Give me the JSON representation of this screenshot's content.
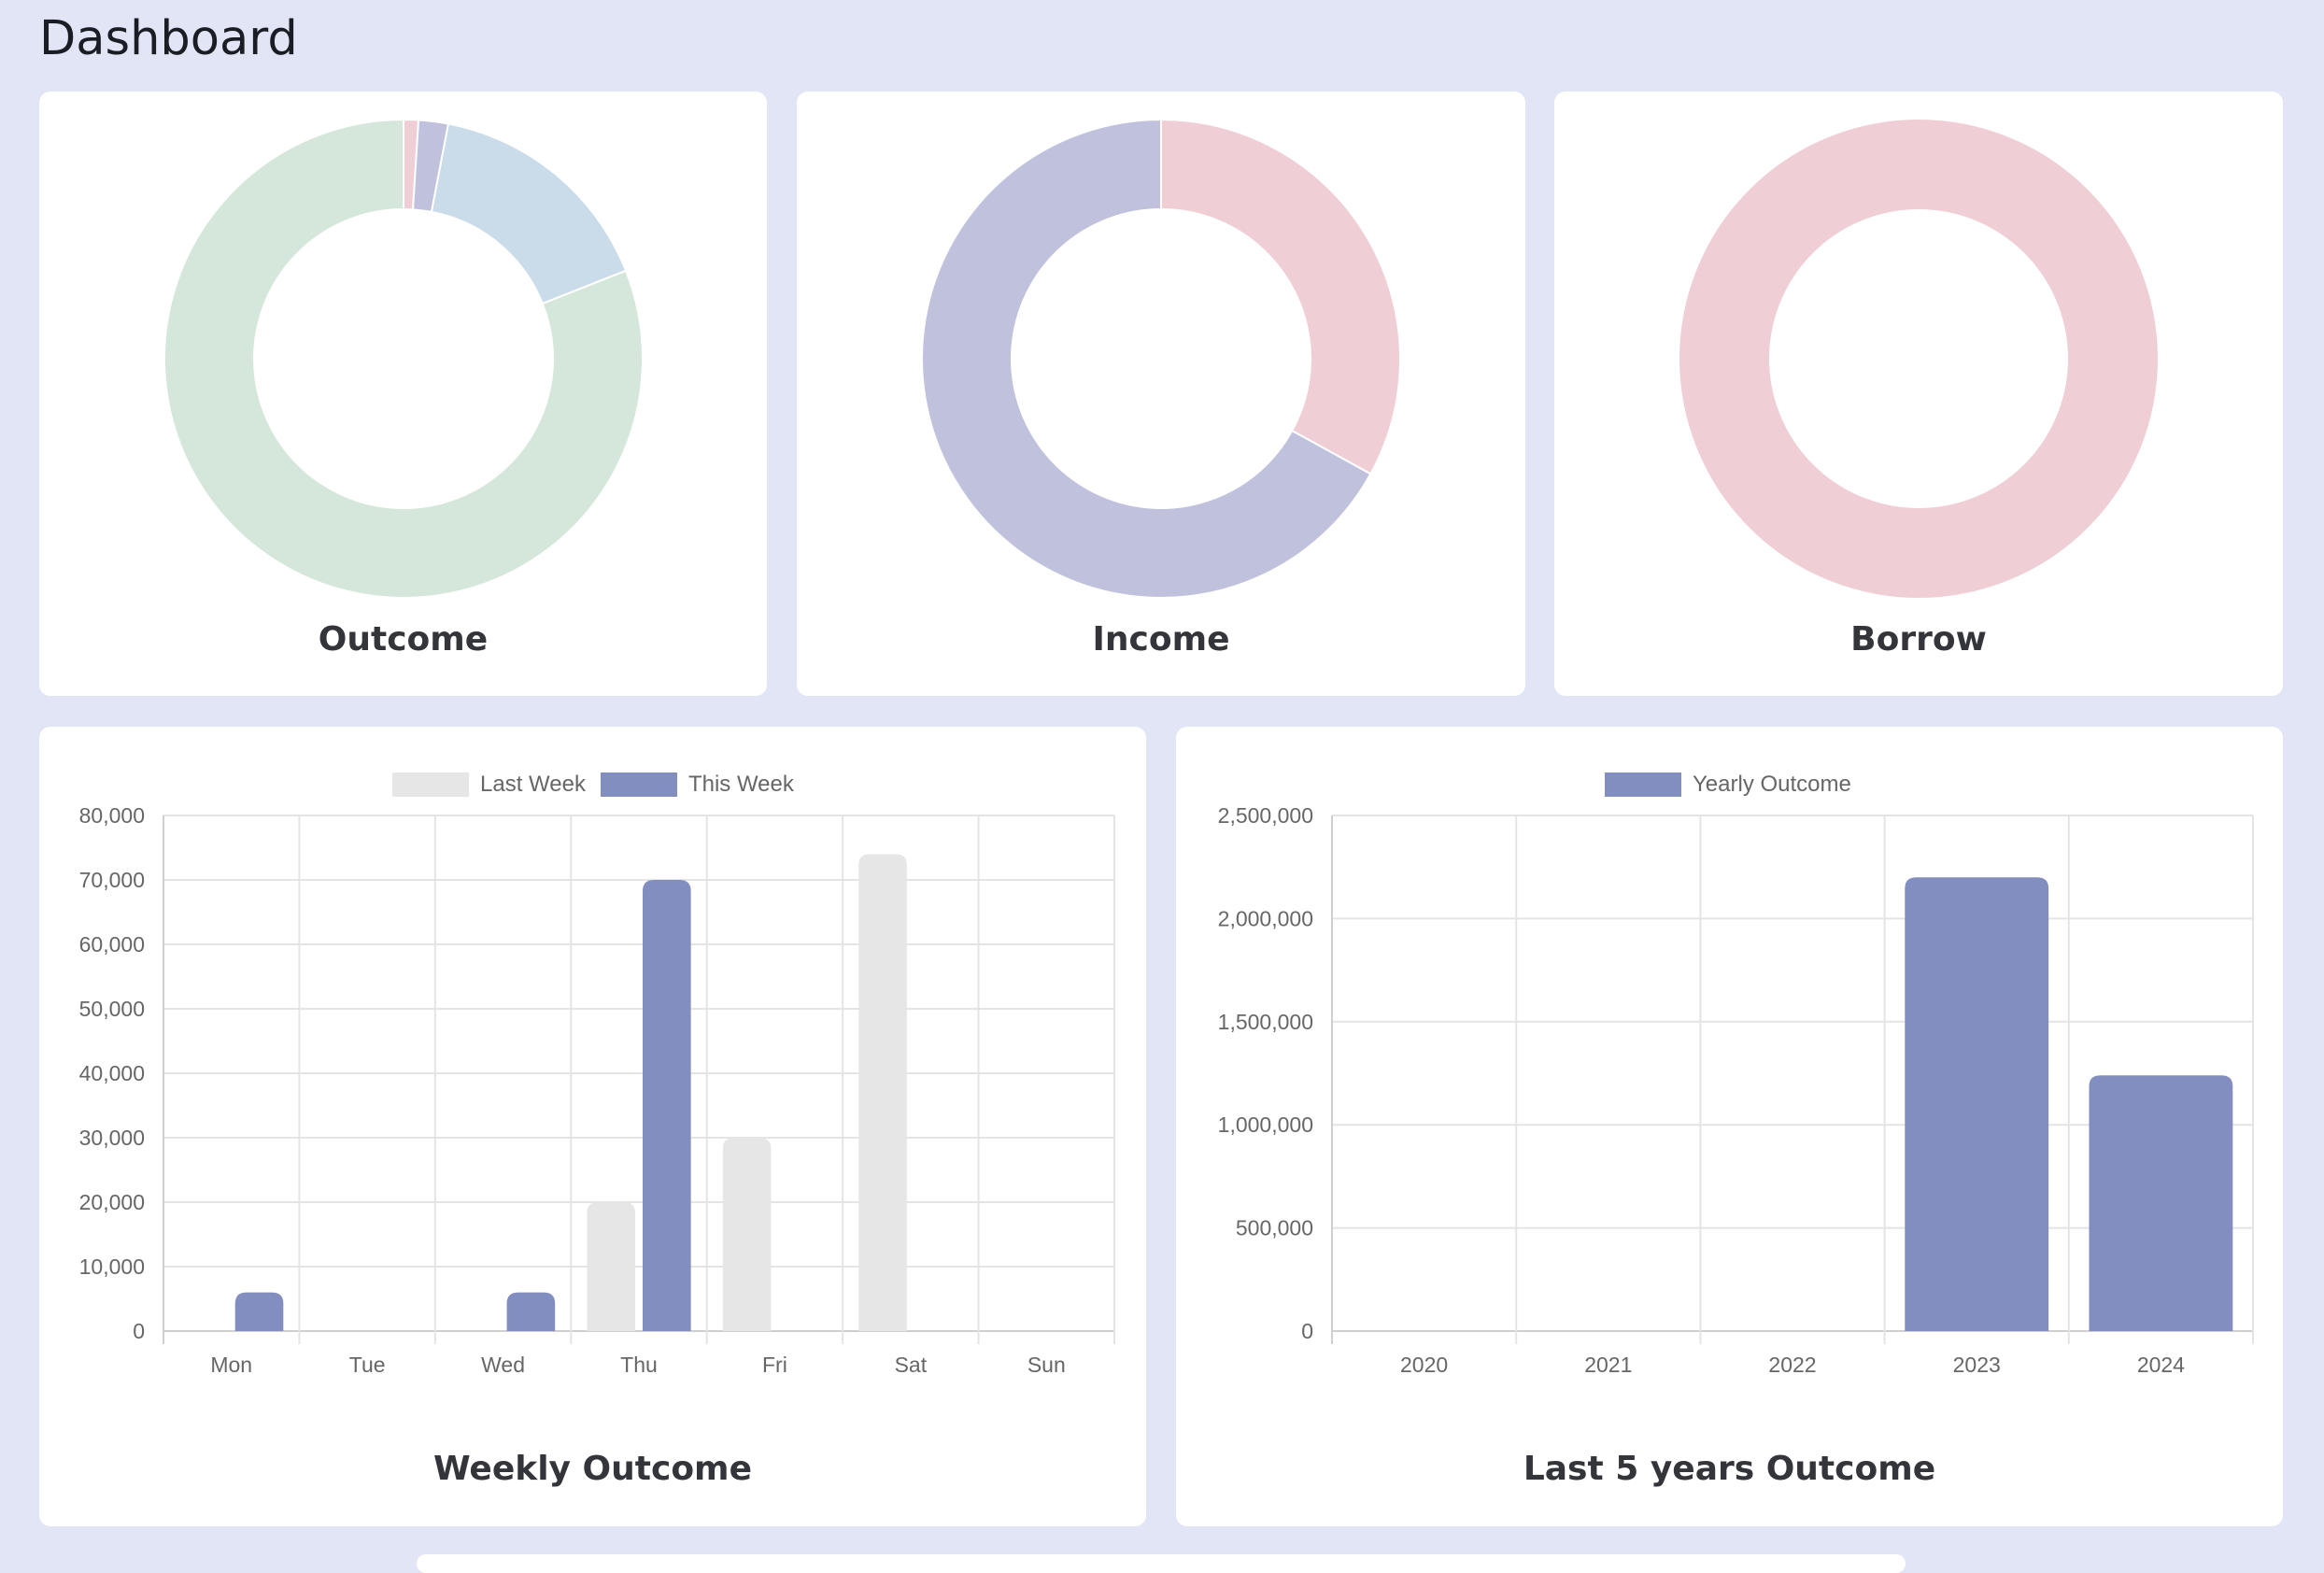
{
  "page": {
    "title": "Dashboard"
  },
  "donuts": [
    {
      "title": "Outcome",
      "slices": [
        {
          "value": 1,
          "color": "#f0ced6"
        },
        {
          "value": 2,
          "color": "#c0c1dc"
        },
        {
          "value": 16,
          "color": "#cadbe9"
        },
        {
          "value": 81,
          "color": "#d5e6da"
        }
      ]
    },
    {
      "title": "Income",
      "slices": [
        {
          "value": 33,
          "color": "#f0ced6"
        },
        {
          "value": 67,
          "color": "#c0c1dc"
        }
      ]
    },
    {
      "title": "Borrow",
      "slices": [
        {
          "value": 100,
          "color": "#f0ced6"
        }
      ]
    }
  ],
  "weekly": {
    "title": "Weekly Outcome",
    "legend": [
      {
        "label": "Last Week",
        "color": "#e6e6e6"
      },
      {
        "label": "This Week",
        "color": "#828dc0"
      }
    ]
  },
  "yearly": {
    "title": "Last 5 years Outcome",
    "legend": [
      {
        "label": "Yearly Outcome",
        "color": "#828dc0"
      }
    ]
  },
  "chart_data": [
    {
      "type": "pie",
      "title": "Outcome",
      "values": [
        1,
        2,
        16,
        81
      ],
      "colors": [
        "#f0ced6",
        "#c0c1dc",
        "#cadbe9",
        "#d5e6da"
      ]
    },
    {
      "type": "pie",
      "title": "Income",
      "values": [
        33,
        67
      ],
      "colors": [
        "#f0ced6",
        "#c0c1dc"
      ]
    },
    {
      "type": "pie",
      "title": "Borrow",
      "values": [
        100
      ],
      "colors": [
        "#f0ced6"
      ]
    },
    {
      "type": "bar",
      "title": "Weekly Outcome",
      "categories": [
        "Mon",
        "Tue",
        "Wed",
        "Thu",
        "Fri",
        "Sat",
        "Sun"
      ],
      "series": [
        {
          "name": "Last Week",
          "values": [
            0,
            0,
            0,
            20000,
            30000,
            74000,
            0
          ],
          "color": "#e6e6e6"
        },
        {
          "name": "This Week",
          "values": [
            6000,
            0,
            6000,
            70000,
            0,
            0,
            0
          ],
          "color": "#828dc0"
        }
      ],
      "ylim": [
        0,
        80000
      ],
      "yticks": [
        0,
        10000,
        20000,
        30000,
        40000,
        50000,
        60000,
        70000,
        80000
      ],
      "ytick_labels": [
        "0",
        "10,000",
        "20,000",
        "30,000",
        "40,000",
        "50,000",
        "60,000",
        "70,000",
        "80,000"
      ],
      "grid": true,
      "legend_position": "top"
    },
    {
      "type": "bar",
      "title": "Last 5 years Outcome",
      "categories": [
        "2020",
        "2021",
        "2022",
        "2023",
        "2024"
      ],
      "series": [
        {
          "name": "Yearly Outcome",
          "values": [
            0,
            0,
            0,
            2200000,
            1240000
          ],
          "color": "#828dc0"
        }
      ],
      "ylim": [
        0,
        2500000
      ],
      "yticks": [
        0,
        500000,
        1000000,
        1500000,
        2000000,
        2500000
      ],
      "ytick_labels": [
        "0",
        "500,000",
        "1,000,000",
        "1,500,000",
        "2,000,000",
        "2,500,000"
      ],
      "grid": true,
      "legend_position": "top"
    }
  ]
}
